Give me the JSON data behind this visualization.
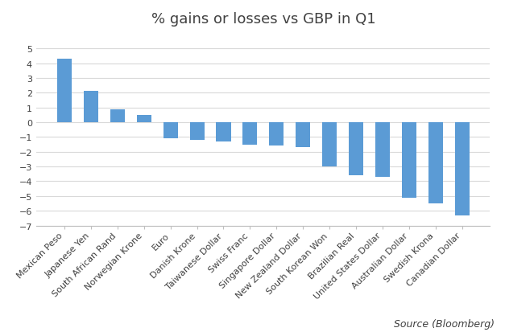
{
  "title": "% gains or losses vs GBP in Q1",
  "categories": [
    "Mexican Peso",
    "Japanese Yen",
    "South African Rand",
    "Norwegian Krone",
    "Euro",
    "Danish Krone",
    "Taiwanese Dollar",
    "Swiss Franc",
    "Singapore Dollar",
    "New Zealand Dollar",
    "South Korean Won",
    "Brazilian Real",
    "United States Dollar",
    "Australian Dollar",
    "Swedish Krona",
    "Canadian Dollar"
  ],
  "values": [
    4.3,
    2.1,
    0.9,
    0.5,
    -1.1,
    -1.2,
    -1.3,
    -1.55,
    -1.6,
    -1.7,
    -3.0,
    -3.6,
    -3.7,
    -5.1,
    -5.5,
    -6.3
  ],
  "bar_color": "#5B9BD5",
  "ylim": [
    -7,
    6
  ],
  "yticks": [
    -7,
    -6,
    -5,
    -4,
    -3,
    -2,
    -1,
    0,
    1,
    2,
    3,
    4,
    5
  ],
  "source_text": "Source (Bloomberg)",
  "background_color": "#ffffff",
  "title_fontsize": 13,
  "title_color": "#404040",
  "tick_fontsize": 8,
  "source_fontsize": 9,
  "bar_width": 0.55
}
